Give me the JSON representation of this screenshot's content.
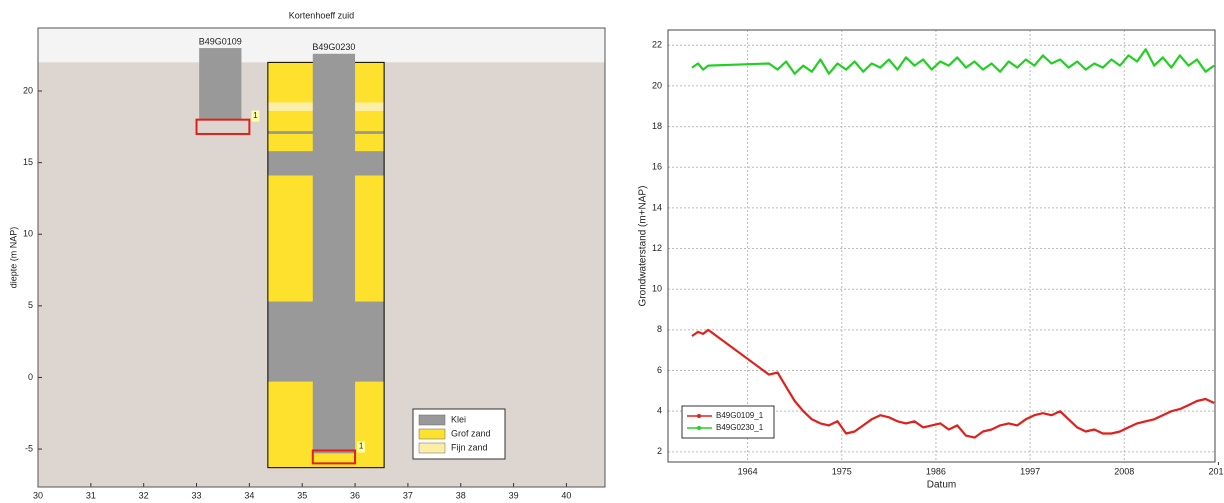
{
  "chart_data": [
    {
      "type": "profile",
      "title": "Kortenhoeff zuid",
      "y_label": "diepte (m NAP)",
      "xlim": [
        30,
        40.73
      ],
      "ylim": [
        -7.65,
        24.4
      ],
      "xticks": [
        30,
        31,
        32,
        33,
        34,
        35,
        36,
        37,
        38,
        39,
        40
      ],
      "yticks": [
        -5,
        0,
        5,
        10,
        15,
        20
      ],
      "surface": 22,
      "legend": "lower right",
      "soils": [
        {
          "name": "Klei",
          "color": "#999999"
        },
        {
          "name": "Grof zand",
          "color": "#fde12c"
        },
        {
          "name": "Fijn zand",
          "color": "#fdeea6"
        }
      ],
      "boreholes": [
        {
          "name": "B49G0109",
          "columns": [
            {
              "xlim": [
                33.05,
                33.85
              ],
              "layers": [
                {
                  "top": 23,
                  "bottom": 18,
                  "soil": "Klei"
                }
              ]
            }
          ],
          "filters": [
            {
              "label": "1",
              "xlim": [
                33.0,
                34.0
              ],
              "top": 18,
              "bottom": 17
            }
          ]
        },
        {
          "name": "B49G0230",
          "columns": [
            {
              "xlim": [
                34.35,
                36.55
              ],
              "layers": [
                {
                  "top": 22,
                  "bottom": 19.2,
                  "soil": "Grof zand"
                },
                {
                  "top": 19.2,
                  "bottom": 18.6,
                  "soil": "Fijn zand"
                },
                {
                  "top": 18.6,
                  "bottom": 17.2,
                  "soil": "Grof zand"
                },
                {
                  "top": 17.2,
                  "bottom": 17.0,
                  "soil": "Klei"
                },
                {
                  "top": 17.0,
                  "bottom": 15.8,
                  "soil": "Grof zand"
                },
                {
                  "top": 15.8,
                  "bottom": 14.1,
                  "soil": "Klei"
                },
                {
                  "top": 14.1,
                  "bottom": 5.3,
                  "soil": "Grof zand"
                },
                {
                  "top": 5.3,
                  "bottom": -0.3,
                  "soil": "Klei"
                },
                {
                  "top": -0.3,
                  "bottom": -6.3,
                  "soil": "Grof zand"
                }
              ]
            },
            {
              "xlim": [
                35.2,
                36.0
              ],
              "layers": [
                {
                  "top": 22.6,
                  "bottom": -5.3,
                  "soil": "Klei"
                }
              ]
            }
          ],
          "filters": [
            {
              "label": "1",
              "xlim": [
                35.2,
                36.0
              ],
              "top": -5.1,
              "bottom": -6.0
            }
          ]
        }
      ]
    },
    {
      "type": "line",
      "x_label": "Datum",
      "y_label": "Grondwaterstand (m+NAP)",
      "xlim": [
        1954.7,
        2018.6
      ],
      "ylim": [
        1.5,
        22.75
      ],
      "xticks": [
        1964,
        1975,
        1986,
        1997,
        2008,
        {
          "value": 2019,
          "label": "201"
        }
      ],
      "yticks": [
        2,
        4,
        6,
        8,
        10,
        12,
        14,
        16,
        18,
        20,
        22
      ],
      "grid": true,
      "legend": "lower left",
      "x": [
        1957.5,
        1958.2,
        1958.8,
        1959.4,
        1966.5,
        1967.5,
        1968.5,
        1969.5,
        1970.5,
        1971.5,
        1972.5,
        1973.5,
        1974.5,
        1975.5,
        1976.5,
        1977.5,
        1978.5,
        1979.5,
        1980.5,
        1981.5,
        1982.5,
        1983.5,
        1984.5,
        1985.5,
        1986.5,
        1987.5,
        1988.5,
        1989.5,
        1990.5,
        1991.5,
        1992.5,
        1993.5,
        1994.5,
        1995.5,
        1996.5,
        1997.5,
        1998.5,
        1999.5,
        2000.5,
        2001.5,
        2002.5,
        2003.5,
        2004.5,
        2005.5,
        2006.5,
        2007.5,
        2008.5,
        2009.5,
        2010.5,
        2011.5,
        2012.5,
        2013.5,
        2014.5,
        2015.5,
        2016.5,
        2017.5,
        2018.5
      ],
      "series": [
        {
          "name": "B49G0109_1",
          "color": "#e0201b",
          "values": [
            7.7,
            7.9,
            7.8,
            8.0,
            5.8,
            5.9,
            5.2,
            4.5,
            4.0,
            3.6,
            3.4,
            3.3,
            3.5,
            2.9,
            3.0,
            3.3,
            3.6,
            3.8,
            3.7,
            3.5,
            3.4,
            3.5,
            3.2,
            3.3,
            3.4,
            3.1,
            3.3,
            2.8,
            2.7,
            3.0,
            3.1,
            3.3,
            3.4,
            3.3,
            3.6,
            3.8,
            3.9,
            3.8,
            4.0,
            3.6,
            3.2,
            3.0,
            3.1,
            2.9,
            2.9,
            3.0,
            3.2,
            3.4,
            3.5,
            3.6,
            3.8,
            4.0,
            4.1,
            4.3,
            4.5,
            4.6,
            4.4
          ]
        },
        {
          "name": "B49G0230_1",
          "color": "#22d022",
          "values": [
            20.9,
            21.1,
            20.8,
            21.0,
            21.1,
            20.8,
            21.2,
            20.6,
            21.0,
            20.7,
            21.3,
            20.6,
            21.1,
            20.8,
            21.2,
            20.7,
            21.1,
            20.9,
            21.3,
            20.8,
            21.4,
            21.0,
            21.3,
            20.8,
            21.2,
            21.0,
            21.4,
            20.9,
            21.2,
            20.8,
            21.1,
            20.7,
            21.2,
            20.9,
            21.3,
            21.0,
            21.5,
            21.1,
            21.3,
            20.9,
            21.2,
            20.8,
            21.1,
            20.9,
            21.3,
            21.0,
            21.5,
            21.2,
            21.8,
            21.0,
            21.4,
            20.9,
            21.5,
            21.0,
            21.3,
            20.7,
            21.0
          ]
        }
      ]
    }
  ]
}
